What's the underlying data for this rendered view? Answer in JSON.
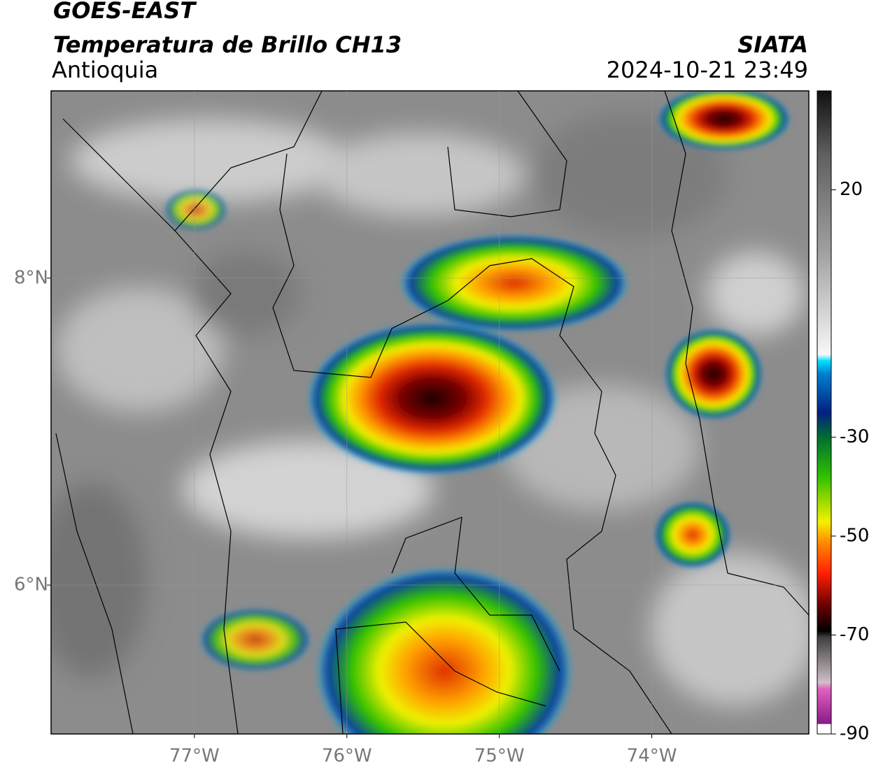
{
  "header": {
    "title": "GOES-EAST",
    "subtitle": "Temperatura de Brillo CH13",
    "region": "Antioquia",
    "source": "SIATA",
    "datetime": "2024-10-21 23:49"
  },
  "map": {
    "xlim": [
      -77.94,
      -72.97
    ],
    "ylim": [
      5.03,
      9.22
    ],
    "lon_ticks": [
      {
        "value": -77,
        "label": "77°W"
      },
      {
        "value": -76,
        "label": "76°W"
      },
      {
        "value": -75,
        "label": "75°W"
      },
      {
        "value": -74,
        "label": "74°W"
      }
    ],
    "lat_ticks": [
      {
        "value": 8,
        "label": "8°N"
      },
      {
        "value": 6,
        "label": "6°N"
      }
    ],
    "grid": true
  },
  "colorbar": {
    "lim": [
      -90,
      40
    ],
    "ticks": [
      20,
      -30,
      -50,
      -70,
      -90
    ]
  }
}
